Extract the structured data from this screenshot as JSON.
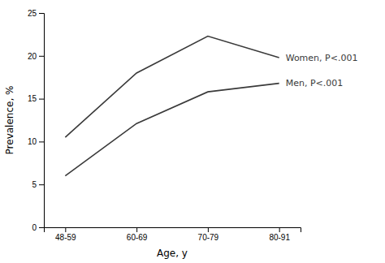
{
  "chart_data": {
    "type": "line",
    "categories": [
      "48-59",
      "60-69",
      "70-79",
      "80-91"
    ],
    "series": [
      {
        "values": [
          10.5,
          18.0,
          22.3,
          19.8
        ],
        "color": "#3a3a3a"
      },
      {
        "values": [
          6.0,
          12.1,
          15.8,
          16.8
        ],
        "color": "#3a3a3a"
      }
    ],
    "x_label": "Age, y",
    "y_label": "Prevalence, %",
    "ylim": [
      0,
      25
    ],
    "yticks": [
      0,
      5,
      10,
      15,
      20,
      25
    ],
    "annotations": [
      "Women, P<.001",
      "Men, P<.001"
    ]
  }
}
